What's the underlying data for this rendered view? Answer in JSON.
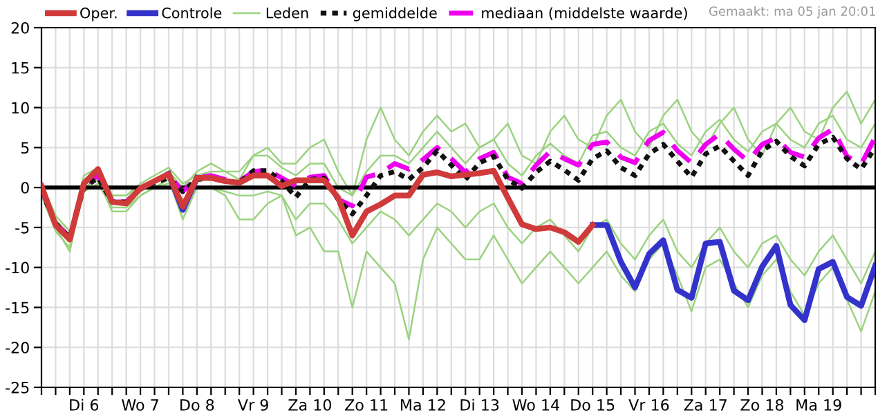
{
  "chart_data": {
    "type": "line",
    "categories": [
      null,
      null,
      null,
      "Di 6",
      null,
      null,
      null,
      "Wo 7",
      null,
      null,
      null,
      "Do 8",
      null,
      null,
      null,
      "Vr 9",
      null,
      null,
      null,
      "Za 10",
      null,
      null,
      null,
      "Zo 11",
      null,
      null,
      null,
      "Ma 12",
      null,
      null,
      null,
      "Di 13",
      null,
      null,
      null,
      "Wo 14",
      null,
      null,
      null,
      "Do 15",
      null,
      null,
      null,
      "Vr 16",
      null,
      null,
      null,
      "Za 17",
      null,
      null,
      null,
      "Zo 18",
      null,
      null,
      null,
      "Ma 19",
      null,
      null,
      null,
      null
    ],
    "series": [
      {
        "name": "Oper.",
        "color": "#d03a3a",
        "line_style": "solid",
        "values": [
          0.2,
          -4.7,
          -6.5,
          0.5,
          2.3,
          -1.8,
          -2.0,
          -0.1,
          0.8,
          1.7,
          -2.4,
          1.2,
          1.2,
          0.8,
          0.6,
          1.5,
          1.5,
          0.2,
          0.9,
          0.9,
          0.9,
          -1.3,
          -6.0,
          -3.0,
          -2.1,
          -1.0,
          -1.0,
          1.6,
          1.9,
          1.4,
          1.6,
          1.8,
          2.1,
          -1.3,
          -4.6,
          -5.2,
          -5.0,
          -5.6,
          -6.8,
          -4.7,
          null,
          null,
          null,
          null,
          null,
          null,
          null,
          null,
          null,
          null,
          null,
          null,
          null,
          null,
          null,
          null,
          null,
          null,
          null,
          null
        ]
      },
      {
        "name": "Controle",
        "color": "#3333cc",
        "line_style": "solid",
        "values": [
          null,
          null,
          null,
          null,
          null,
          null,
          null,
          null,
          null,
          1.7,
          -2.8,
          1.2,
          null,
          null,
          null,
          null,
          null,
          null,
          null,
          null,
          null,
          null,
          null,
          null,
          null,
          null,
          null,
          null,
          null,
          null,
          null,
          null,
          null,
          null,
          null,
          null,
          null,
          null,
          null,
          -4.7,
          -4.7,
          -9.3,
          -12.5,
          -8.3,
          -6.6,
          -12.8,
          -13.8,
          -7.0,
          -6.8,
          -12.9,
          -14.1,
          -9.9,
          -7.3,
          -14.7,
          -16.6,
          -10.2,
          -9.3,
          -13.7,
          -14.8,
          -9.8
        ]
      },
      {
        "name": "Leden",
        "color": "#9bd27f",
        "line_style": "solid",
        "values": [
          0,
          -4,
          -6,
          1,
          2,
          -1,
          -1,
          0,
          1,
          2,
          0,
          2,
          3,
          2,
          1,
          4,
          5,
          3,
          3,
          5,
          6,
          2,
          -1,
          6,
          10,
          6,
          4,
          7,
          9,
          7,
          8,
          5,
          6,
          8,
          4,
          3,
          7,
          9,
          6,
          5,
          9,
          11,
          7,
          5,
          9,
          11,
          7,
          5,
          8,
          10,
          6,
          4,
          8,
          10,
          7,
          6,
          10,
          12,
          8,
          11
        ]
      },
      {
        "color": "#9bd27f",
        "line_style": "solid",
        "values": [
          0,
          -5,
          -8,
          0,
          1,
          -3,
          -3,
          -1,
          0,
          1,
          -4,
          0,
          0,
          -1,
          -4,
          -4,
          -2,
          -1,
          -6,
          -5,
          -8,
          -8,
          -15,
          -8,
          -10,
          -12,
          -19,
          -9,
          -5,
          -7,
          -9,
          -9,
          -6,
          -9,
          -12,
          -10,
          -8,
          -10,
          -12,
          -10,
          -8,
          -11,
          -13,
          -9,
          -7,
          -11,
          -15.5,
          -10,
          -9,
          -12,
          -15,
          -11,
          -9,
          -13,
          -16,
          -12,
          -10,
          -14,
          -18,
          -13
        ]
      },
      {
        "color": "#9bd27f",
        "line_style": "solid",
        "values": [
          0.5,
          -3.5,
          -5.5,
          1.5,
          2.5,
          -1,
          -1,
          0.5,
          1.5,
          2.5,
          0.5,
          1.5,
          2,
          2,
          2,
          4,
          4,
          2.5,
          1.5,
          3,
          3,
          0,
          -1,
          2,
          4,
          4,
          3,
          5,
          7,
          5,
          3,
          5,
          6,
          3,
          1.5,
          4,
          5.5,
          4,
          3,
          6.5,
          7,
          5,
          4,
          7,
          8,
          5.5,
          4,
          7,
          8.5,
          6,
          4.5,
          7,
          8,
          6,
          5,
          8,
          9,
          6,
          5,
          8
        ]
      },
      {
        "color": "#9bd27f",
        "line_style": "solid",
        "values": [
          -1,
          -5.5,
          -7.5,
          -0.5,
          0.5,
          -2.5,
          -2.5,
          -1,
          0,
          0.5,
          -1.5,
          0,
          0,
          -0.5,
          -1,
          -1,
          -0.5,
          -1,
          -4,
          -2,
          -2,
          -4,
          -7,
          -5,
          -3,
          -4,
          -6,
          -4,
          -2,
          -3,
          -5,
          -3,
          -2,
          -5,
          -7,
          -5,
          -4,
          -6,
          -8,
          -5,
          -4,
          -7,
          -9,
          -6,
          -4,
          -8,
          -10,
          -7,
          -5,
          -8,
          -10,
          -7,
          -6,
          -9,
          -11,
          -8,
          -6,
          -9,
          -12,
          -8
        ]
      },
      {
        "name": "gemiddelde",
        "color": "#111111",
        "line_style": "dotted",
        "values": [
          -0.5,
          -4.5,
          -6.3,
          0.0,
          1.2,
          -1.8,
          -1.8,
          -0.2,
          0.6,
          1.2,
          -0.5,
          1.0,
          1.2,
          0.8,
          0.6,
          2.1,
          2.1,
          0.8,
          -1.2,
          1.0,
          1.2,
          -1.5,
          -3.3,
          -1.0,
          1.5,
          2.0,
          1.0,
          2.5,
          4.6,
          2.8,
          1.0,
          3.1,
          3.9,
          1.0,
          -0.1,
          1.9,
          3.3,
          2.2,
          0.9,
          3.6,
          4.6,
          2.5,
          1.5,
          4.2,
          5.4,
          3.3,
          1.3,
          4.2,
          5.2,
          3.3,
          1.5,
          4.6,
          5.8,
          3.9,
          2.7,
          5.4,
          6.3,
          3.6,
          2.3,
          5.0
        ]
      },
      {
        "name": "mediaan (middelste waarde)",
        "color": "#ee00ee",
        "line_style": "dashed",
        "values": [
          -0.3,
          -4.5,
          -6.2,
          0.3,
          1.5,
          -1.8,
          -1.8,
          0.0,
          0.8,
          1.5,
          -0.5,
          1.2,
          1.5,
          1.0,
          0.8,
          2.0,
          2.2,
          1.2,
          0.2,
          1.3,
          1.5,
          -1.5,
          -2.3,
          1.3,
          1.8,
          3.0,
          2.3,
          3.5,
          5.0,
          3.6,
          1.9,
          3.6,
          4.4,
          1.3,
          0.5,
          2.8,
          4.5,
          3.6,
          2.8,
          5.4,
          5.7,
          3.8,
          3.1,
          5.9,
          6.9,
          4.6,
          3.1,
          5.4,
          6.7,
          4.8,
          3.3,
          5.4,
          6.2,
          4.4,
          3.8,
          6.2,
          7.3,
          3.9,
          2.9,
          6.3
        ]
      }
    ],
    "ylim": [
      -25,
      20
    ],
    "yticks": [
      -25,
      -20,
      -15,
      -10,
      -5,
      0,
      5,
      10,
      15,
      20
    ],
    "grid": true,
    "legend": "top",
    "ref_lines": [
      {
        "axis": "y",
        "value": 0,
        "color": "#000000"
      }
    ],
    "annotations": [
      "Gemaakt: ma 05 jan 20:01"
    ]
  }
}
